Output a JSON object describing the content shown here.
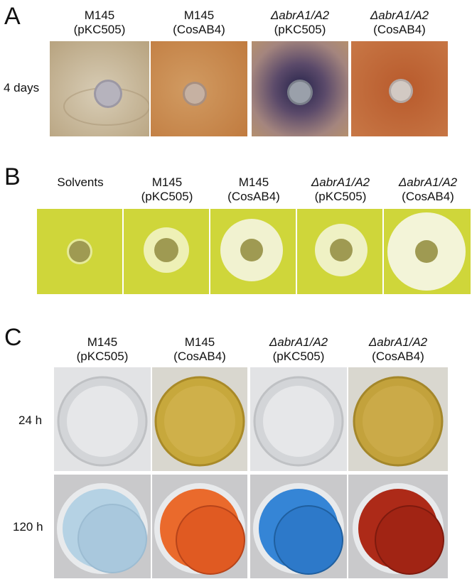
{
  "panels": {
    "A": {
      "letter": "A",
      "row_label": "4 days",
      "columns": [
        {
          "line1": "M145",
          "line2": "(pKC505)",
          "italic": false
        },
        {
          "line1": "M145",
          "line2": "(CosAB4)",
          "italic": false
        },
        {
          "line1": "ΔabrA1/A2",
          "line2": "(pKC505)",
          "italic": true
        },
        {
          "line1": "ΔabrA1/A2",
          "line2": "(CosAB4)",
          "italic": true
        }
      ]
    },
    "B": {
      "letter": "B",
      "columns": [
        {
          "line1": "",
          "line2": "Solvents",
          "italic": false
        },
        {
          "line1": "M145",
          "line2": "(pKC505)",
          "italic": false
        },
        {
          "line1": "M145",
          "line2": "(CosAB4)",
          "italic": false
        },
        {
          "line1": "ΔabrA1/A2",
          "line2": "(pKC505)",
          "italic": true
        },
        {
          "line1": "ΔabrA1/A2",
          "line2": "(CosAB4)",
          "italic": true
        }
      ]
    },
    "C": {
      "letter": "C",
      "columns": [
        {
          "line1": "M145",
          "line2": "(pKC505)",
          "italic": false
        },
        {
          "line1": "M145",
          "line2": "(CosAB4)",
          "italic": false
        },
        {
          "line1": "ΔabrA1/A2",
          "line2": "(pKC505)",
          "italic": true
        },
        {
          "line1": "ΔabrA1/A2",
          "line2": "(CosAB4)",
          "italic": true
        }
      ],
      "row_labels": [
        "24 h",
        "120 h"
      ]
    }
  },
  "colors": {
    "agar_plate_bg": [
      "#c9b99a",
      "#cf8f52",
      "#9a7a80",
      "#c46a36"
    ],
    "halo_plate_bg": "#cfd63a",
    "halo_zone": "#f2f3d0",
    "well_24h": [
      "#dcdedf",
      "#c9a93a",
      "#dcdedf",
      "#c4a23a"
    ],
    "well_120h": [
      "#b8d4e6",
      "#e8642a",
      "#2f7fd0",
      "#a82818"
    ]
  }
}
